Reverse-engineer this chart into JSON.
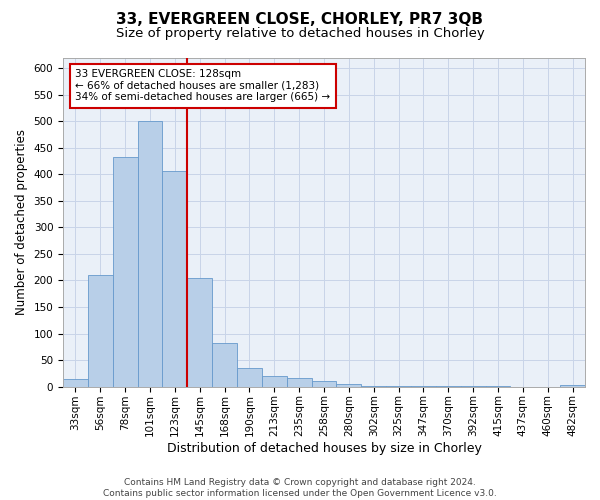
{
  "title1": "33, EVERGREEN CLOSE, CHORLEY, PR7 3QB",
  "title2": "Size of property relative to detached houses in Chorley",
  "xlabel": "Distribution of detached houses by size in Chorley",
  "ylabel": "Number of detached properties",
  "categories": [
    "33sqm",
    "56sqm",
    "78sqm",
    "101sqm",
    "123sqm",
    "145sqm",
    "168sqm",
    "190sqm",
    "213sqm",
    "235sqm",
    "258sqm",
    "280sqm",
    "302sqm",
    "325sqm",
    "347sqm",
    "370sqm",
    "392sqm",
    "415sqm",
    "437sqm",
    "460sqm",
    "482sqm"
  ],
  "values": [
    15,
    211,
    432,
    500,
    407,
    205,
    82,
    36,
    20,
    17,
    11,
    5,
    2,
    1,
    1,
    1,
    1,
    1,
    0,
    0,
    4
  ],
  "bar_color": "#b8cfe8",
  "bar_edge_color": "#6699cc",
  "vline_color": "#cc0000",
  "annotation_text": "33 EVERGREEN CLOSE: 128sqm\n← 66% of detached houses are smaller (1,283)\n34% of semi-detached houses are larger (665) →",
  "annotation_box_color": "#ffffff",
  "annotation_box_edge_color": "#cc0000",
  "ylim": [
    0,
    620
  ],
  "yticks": [
    0,
    50,
    100,
    150,
    200,
    250,
    300,
    350,
    400,
    450,
    500,
    550,
    600
  ],
  "grid_color": "#c8d4e8",
  "bg_color": "#eaf0f8",
  "footnote": "Contains HM Land Registry data © Crown copyright and database right 2024.\nContains public sector information licensed under the Open Government Licence v3.0.",
  "title1_fontsize": 11,
  "title2_fontsize": 9.5,
  "xlabel_fontsize": 9,
  "ylabel_fontsize": 8.5,
  "footnote_fontsize": 6.5,
  "tick_fontsize": 7.5,
  "annot_fontsize": 7.5
}
